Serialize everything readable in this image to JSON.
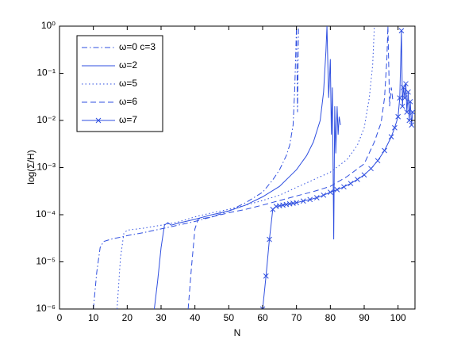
{
  "chart_data": {
    "type": "line",
    "x_label": "N",
    "y_label": "log(Σ/H)",
    "xlim": [
      0,
      105
    ],
    "xticks": [
      0,
      10,
      20,
      30,
      40,
      50,
      60,
      70,
      80,
      90,
      100
    ],
    "ylim": [
      1e-06,
      1
    ],
    "yscale": "log",
    "yticks": [
      {
        "value": 1e-06,
        "label": "10⁻⁶"
      },
      {
        "value": 1e-05,
        "label": "10⁻⁵"
      },
      {
        "value": 0.0001,
        "label": "10⁻⁴"
      },
      {
        "value": 0.001,
        "label": "10⁻³"
      },
      {
        "value": 0.01,
        "label": "10⁻²"
      },
      {
        "value": 0.1,
        "label": "10⁻¹"
      },
      {
        "value": 1,
        "label": "10⁰"
      }
    ],
    "grid": false,
    "legend_position": "upper left",
    "series": [
      {
        "name": "ω=0 c=3",
        "color": "#2f4fe0",
        "linestyle": "-.",
        "marker": null,
        "x": [
          10,
          11,
          12,
          13,
          15,
          20,
          25,
          30,
          35,
          40,
          45,
          50,
          55,
          60,
          63,
          65,
          67,
          68,
          69,
          69.5,
          70,
          70.3,
          70.6
        ],
        "values": [
          1e-06,
          6e-06,
          2e-05,
          2.7e-05,
          3e-05,
          3.6e-05,
          4.2e-05,
          5e-05,
          6e-05,
          7.2e-05,
          9e-05,
          0.00012,
          0.00018,
          0.0003,
          0.00055,
          0.0009,
          0.0018,
          0.003,
          0.008,
          0.05,
          1,
          0.015,
          1
        ]
      },
      {
        "name": "ω=2",
        "color": "#2f4fe0",
        "linestyle": "-",
        "marker": null,
        "x": [
          28,
          29,
          30,
          31,
          32,
          33,
          35,
          40,
          45,
          50,
          55,
          60,
          65,
          70,
          73,
          75,
          77,
          78,
          78.7,
          79,
          79.5,
          80,
          80.3,
          80.6,
          81,
          81.3,
          81.6,
          82,
          82.3,
          82.6,
          83
        ],
        "values": [
          1e-06,
          4e-06,
          2e-05,
          6e-05,
          6.8e-05,
          6e-05,
          6.6e-05,
          8e-05,
          0.0001,
          0.00012,
          0.00016,
          0.00024,
          0.0004,
          0.0009,
          0.0018,
          0.0035,
          0.01,
          0.04,
          0.3,
          1,
          0.03,
          0.2,
          0.005,
          0.05,
          3e-05,
          0.02,
          0.002,
          0.02,
          0.005,
          0.012,
          0.008
        ]
      },
      {
        "name": "ω=5",
        "color": "#2f4fe0",
        "linestyle": ":",
        "marker": null,
        "x": [
          17,
          18,
          19,
          20,
          25,
          30,
          35,
          40,
          45,
          50,
          55,
          60,
          65,
          70,
          75,
          80,
          85,
          88,
          90,
          91.5,
          92.5,
          93
        ],
        "values": [
          1e-06,
          1.2e-05,
          4e-05,
          4.7e-05,
          5.2e-05,
          6e-05,
          7e-05,
          9e-05,
          0.00011,
          0.00013,
          0.00016,
          0.0002,
          0.00026,
          0.00038,
          0.00055,
          0.0008,
          0.0015,
          0.003,
          0.007,
          0.03,
          0.15,
          1
        ]
      },
      {
        "name": "ω=6",
        "color": "#2f4fe0",
        "linestyle": "--",
        "marker": null,
        "x": [
          38,
          39,
          40,
          41,
          43,
          45,
          50,
          55,
          60,
          65,
          70,
          75,
          80,
          85,
          90,
          93,
          95,
          96,
          96.7,
          97,
          97.5,
          98,
          98.5
        ],
        "values": [
          1e-06,
          8e-06,
          5e-05,
          8.2e-05,
          8.5e-05,
          9e-05,
          0.00011,
          0.00013,
          0.00016,
          0.0002,
          0.00025,
          0.00031,
          0.0004,
          0.00065,
          0.0012,
          0.0035,
          0.009,
          0.03,
          0.2,
          1,
          0.02,
          0.05,
          0.025
        ]
      },
      {
        "name": "ω=7",
        "color": "#2f4fe0",
        "linestyle": "-",
        "marker": "x",
        "x": [
          60,
          61,
          62,
          63,
          64,
          65,
          66,
          67,
          68,
          69,
          70,
          72,
          74,
          76,
          78,
          80,
          82,
          84,
          86,
          88,
          90,
          92,
          94,
          96,
          98,
          99,
          100,
          100.5,
          101,
          101.3,
          101.6,
          102,
          102.3,
          102.6,
          103,
          103.3,
          103.6,
          104,
          104.3
        ],
        "values": [
          1e-06,
          5e-06,
          3e-05,
          0.00013,
          0.00015,
          0.000155,
          0.00016,
          0.000165,
          0.00017,
          0.000175,
          0.00018,
          0.000195,
          0.00021,
          0.00023,
          0.00026,
          0.0003,
          0.00034,
          0.00039,
          0.00046,
          0.00056,
          0.0007,
          0.00095,
          0.0014,
          0.0023,
          0.0045,
          0.007,
          0.012,
          0.03,
          0.8,
          0.02,
          0.05,
          0.03,
          0.06,
          0.015,
          0.04,
          0.01,
          0.025,
          0.008,
          0.015
        ]
      }
    ]
  }
}
